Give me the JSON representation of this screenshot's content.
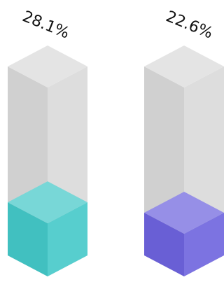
{
  "chart_data": {
    "type": "bar",
    "style": "isometric-3d-cylinder",
    "categories": [
      "",
      ""
    ],
    "series": [
      {
        "values": [
          28.1,
          22.6
        ]
      }
    ],
    "value_labels": [
      "28.1%",
      "22.6%"
    ],
    "unit": "%",
    "ylim": [
      0,
      100
    ],
    "grid": false,
    "legend": "none",
    "colors": {
      "bar_1": "#44c8c8",
      "bar_2": "#6d63de",
      "track": "#d9d9d9"
    }
  }
}
